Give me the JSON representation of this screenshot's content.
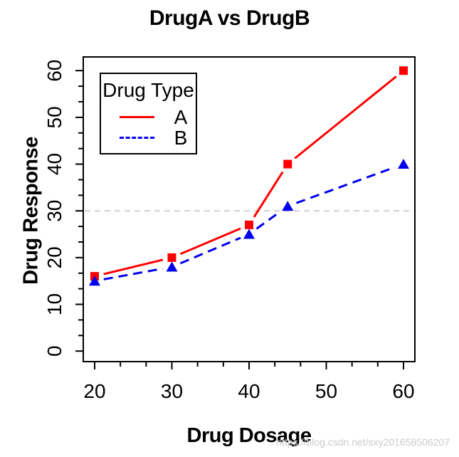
{
  "title": "DrugA vs DrugB",
  "watermark": "https://blog.csdn.net/sxy201658506207",
  "colors": {
    "series_a": "#ff0000",
    "series_b": "#0000ee",
    "reference": "#cfcfcf",
    "axis": "#000000",
    "background": "#ffffff"
  },
  "chart_data": {
    "type": "line",
    "title": "DrugA vs DrugB",
    "xlabel": "Drug Dosage",
    "ylabel": "Drug Response",
    "x": [
      20,
      30,
      40,
      45,
      60
    ],
    "series": [
      {
        "name": "A",
        "values": [
          16,
          20,
          27,
          40,
          60
        ],
        "color": "#ff0000",
        "line": "solid",
        "marker": "square",
        "marker_color": "#ff0000"
      },
      {
        "name": "B",
        "values": [
          15,
          18,
          25,
          31,
          40
        ],
        "color": "#0000ee",
        "line": "dashed",
        "marker": "triangle",
        "marker_color": "#0000ee"
      }
    ],
    "x_ticks": [
      20,
      30,
      40,
      50,
      60
    ],
    "y_ticks": [
      0,
      10,
      20,
      30,
      40,
      50,
      60
    ],
    "minor_ticks_per_interval": 2,
    "xlim": [
      18.5,
      61.5
    ],
    "ylim": [
      -2.5,
      62.5
    ],
    "grid": false,
    "reference_line": {
      "y": 30,
      "color": "#cfcfcf",
      "style": "dashed"
    },
    "legend": {
      "title": "Drug Type",
      "position": "top-left",
      "entries": [
        "A",
        "B"
      ]
    },
    "point_style": "type-b-gapped-lines"
  }
}
